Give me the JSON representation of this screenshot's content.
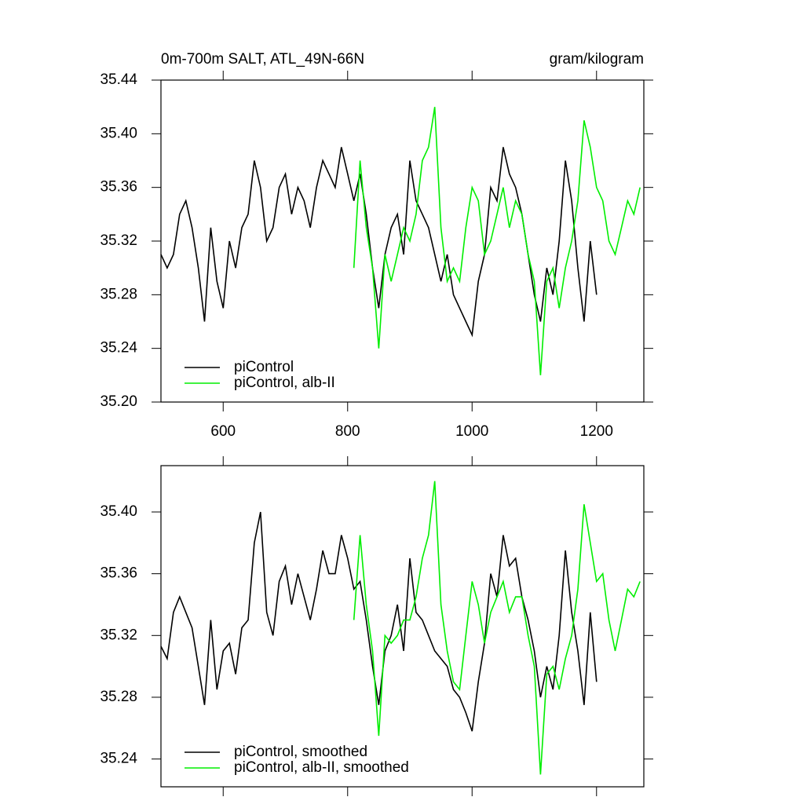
{
  "chart_data": [
    {
      "type": "line",
      "title": "0m-700m SALT, ATL_49N-66N",
      "units": "gram/kilogram",
      "xlim": [
        500,
        1276
      ],
      "xticks": [
        600,
        800,
        1000,
        1200
      ],
      "ylim": [
        35.2,
        35.44
      ],
      "yticks": [
        {
          "value": 35.2,
          "label": "35.20"
        },
        35.24,
        35.28,
        35.32,
        35.36,
        {
          "value": 35.4,
          "label": "35.40"
        },
        35.44
      ],
      "legend": "lower-left",
      "series": [
        {
          "name": "piControl",
          "color": "#000000",
          "x": [
            500,
            510,
            520,
            530,
            540,
            550,
            560,
            570,
            580,
            590,
            600,
            610,
            620,
            630,
            640,
            650,
            660,
            670,
            680,
            690,
            700,
            710,
            720,
            730,
            740,
            750,
            760,
            770,
            780,
            790,
            800,
            810,
            820,
            830,
            840,
            850,
            860,
            870,
            880,
            890,
            900,
            910,
            920,
            930,
            940,
            950,
            960,
            970,
            980,
            990,
            1000,
            1010,
            1020,
            1030,
            1040,
            1050,
            1060,
            1070,
            1080,
            1090,
            1100,
            1110,
            1120,
            1130,
            1140,
            1150,
            1160,
            1170,
            1180,
            1190,
            1200
          ],
          "values": [
            35.31,
            35.3,
            35.31,
            35.34,
            35.35,
            35.33,
            35.3,
            35.26,
            35.33,
            35.29,
            35.27,
            35.32,
            35.3,
            35.33,
            35.34,
            35.38,
            35.36,
            35.32,
            35.33,
            35.36,
            35.37,
            35.34,
            35.36,
            35.35,
            35.33,
            35.36,
            35.38,
            35.37,
            35.36,
            35.39,
            35.37,
            35.35,
            35.37,
            35.34,
            35.3,
            35.27,
            35.31,
            35.33,
            35.34,
            35.31,
            35.38,
            35.35,
            35.34,
            35.33,
            35.31,
            35.29,
            35.31,
            35.28,
            35.27,
            35.26,
            35.25,
            35.29,
            35.31,
            35.36,
            35.35,
            35.39,
            35.37,
            35.36,
            35.34,
            35.31,
            35.28,
            35.26,
            35.3,
            35.28,
            35.32,
            35.38,
            35.35,
            35.3,
            35.26,
            35.32,
            35.28
          ]
        },
        {
          "name": "piControl, alb-II",
          "color": "#00ee00",
          "x": [
            810,
            820,
            830,
            840,
            850,
            860,
            870,
            880,
            890,
            900,
            910,
            920,
            930,
            940,
            950,
            960,
            970,
            980,
            990,
            1000,
            1010,
            1020,
            1030,
            1040,
            1050,
            1060,
            1070,
            1080,
            1090,
            1100,
            1110,
            1120,
            1130,
            1140,
            1150,
            1160,
            1170,
            1180,
            1190,
            1200,
            1210,
            1220,
            1230,
            1240,
            1250,
            1260,
            1270
          ],
          "values": [
            35.3,
            35.38,
            35.33,
            35.3,
            35.24,
            35.31,
            35.29,
            35.31,
            35.33,
            35.32,
            35.34,
            35.38,
            35.39,
            35.42,
            35.33,
            35.29,
            35.3,
            35.29,
            35.33,
            35.36,
            35.35,
            35.31,
            35.32,
            35.34,
            35.36,
            35.33,
            35.35,
            35.34,
            35.31,
            35.29,
            35.22,
            35.29,
            35.3,
            35.27,
            35.3,
            35.32,
            35.35,
            35.41,
            35.39,
            35.36,
            35.35,
            35.32,
            35.31,
            35.33,
            35.35,
            35.34,
            35.36
          ]
        }
      ]
    },
    {
      "type": "line",
      "xlim": [
        500,
        1276
      ],
      "xticks": [
        600,
        800,
        1000,
        1200
      ],
      "xtick_labels": false,
      "ylim": [
        35.222,
        35.43
      ],
      "yticks": [
        35.24,
        35.28,
        35.32,
        35.36,
        {
          "value": 35.4,
          "label": "35.40"
        }
      ],
      "legend": "lower-left",
      "series": [
        {
          "name": "piControl, smoothed",
          "color": "#000000",
          "x": [
            500,
            510,
            520,
            530,
            540,
            550,
            560,
            570,
            580,
            590,
            600,
            610,
            620,
            630,
            640,
            650,
            660,
            670,
            680,
            690,
            700,
            710,
            720,
            730,
            740,
            750,
            760,
            770,
            780,
            790,
            800,
            810,
            820,
            830,
            840,
            850,
            860,
            870,
            880,
            890,
            900,
            910,
            920,
            930,
            940,
            950,
            960,
            970,
            980,
            990,
            1000,
            1010,
            1020,
            1030,
            1040,
            1050,
            1060,
            1070,
            1080,
            1090,
            1100,
            1110,
            1120,
            1130,
            1140,
            1150,
            1160,
            1170,
            1180,
            1190,
            1200
          ],
          "values": [
            35.313,
            35.305,
            35.335,
            35.345,
            35.335,
            35.325,
            35.3,
            35.275,
            35.33,
            35.285,
            35.31,
            35.315,
            35.295,
            35.325,
            35.33,
            35.38,
            35.4,
            35.335,
            35.32,
            35.355,
            35.365,
            35.34,
            35.36,
            35.345,
            35.33,
            35.35,
            35.375,
            35.36,
            35.36,
            35.385,
            35.37,
            35.35,
            35.355,
            35.33,
            35.3,
            35.275,
            35.31,
            35.32,
            35.34,
            35.31,
            35.37,
            35.335,
            35.33,
            35.32,
            35.31,
            35.305,
            35.3,
            35.285,
            35.28,
            35.27,
            35.258,
            35.29,
            35.315,
            35.36,
            35.345,
            35.385,
            35.365,
            35.37,
            35.345,
            35.33,
            35.31,
            35.28,
            35.3,
            35.285,
            35.32,
            35.375,
            35.335,
            35.31,
            35.275,
            35.335,
            35.29
          ]
        },
        {
          "name": "piControl, alb-II, smoothed",
          "color": "#00ee00",
          "x": [
            810,
            820,
            830,
            840,
            850,
            860,
            870,
            880,
            890,
            900,
            910,
            920,
            930,
            940,
            950,
            960,
            970,
            980,
            990,
            1000,
            1010,
            1020,
            1030,
            1040,
            1050,
            1060,
            1070,
            1080,
            1090,
            1100,
            1110,
            1120,
            1130,
            1140,
            1150,
            1160,
            1170,
            1180,
            1190,
            1200,
            1210,
            1220,
            1230,
            1240,
            1250,
            1260,
            1270
          ],
          "values": [
            35.33,
            35.385,
            35.34,
            35.31,
            35.255,
            35.32,
            35.315,
            35.32,
            35.33,
            35.33,
            35.345,
            35.37,
            35.385,
            35.42,
            35.34,
            35.31,
            35.29,
            35.285,
            35.32,
            35.355,
            35.34,
            35.315,
            35.335,
            35.345,
            35.355,
            35.335,
            35.345,
            35.345,
            35.32,
            35.3,
            35.23,
            35.295,
            35.3,
            35.285,
            35.305,
            35.32,
            35.35,
            35.405,
            35.38,
            35.355,
            35.36,
            35.33,
            35.31,
            35.33,
            35.35,
            35.345,
            35.355
          ]
        }
      ]
    }
  ]
}
